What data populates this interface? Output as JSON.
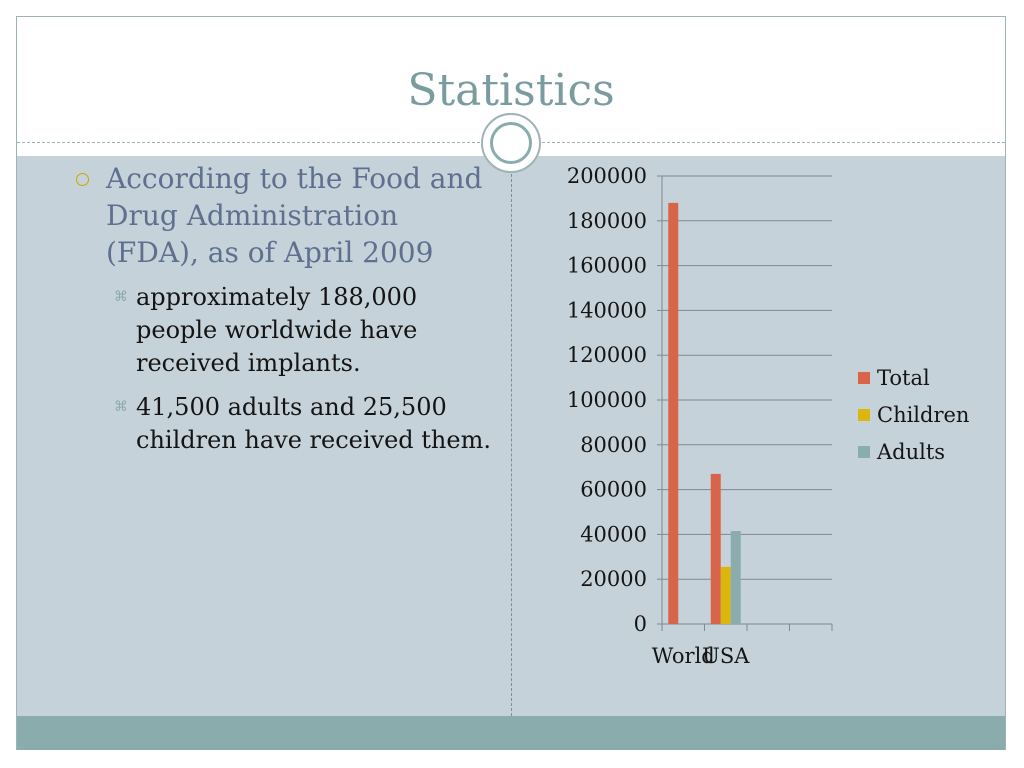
{
  "slide": {
    "title": "Statistics",
    "bullet_main": "According to the Food and Drug Administration (FDA), as of April 2009",
    "sub_bullets": [
      " approximately 188,000 people worldwide have received implants.",
      " 41,500 adults and 25,500 children have received them."
    ]
  },
  "colors": {
    "title": "#7a9c9f",
    "content_bg": "#c6d2d9",
    "footer_band": "#8aacad",
    "bullet_text": "#5f6f8f",
    "total": "#d8644a",
    "children": "#dcb60d",
    "adults": "#8aacad"
  },
  "chart_data": {
    "type": "bar",
    "categories": [
      "World",
      "USA"
    ],
    "series": [
      {
        "name": "Total",
        "values": [
          188000,
          67000
        ],
        "color": "#d8644a"
      },
      {
        "name": "Children",
        "values": [
          0,
          25500
        ],
        "color": "#dcb60d"
      },
      {
        "name": "Adults",
        "values": [
          0,
          41500
        ],
        "color": "#8aacad"
      }
    ],
    "yticks": [
      "0",
      "20000",
      "40000",
      "60000",
      "80000",
      "100000",
      "120000",
      "140000",
      "160000",
      "180000",
      "200000"
    ],
    "ylim": [
      0,
      200000
    ],
    "grid": true,
    "legend_position": "right"
  }
}
